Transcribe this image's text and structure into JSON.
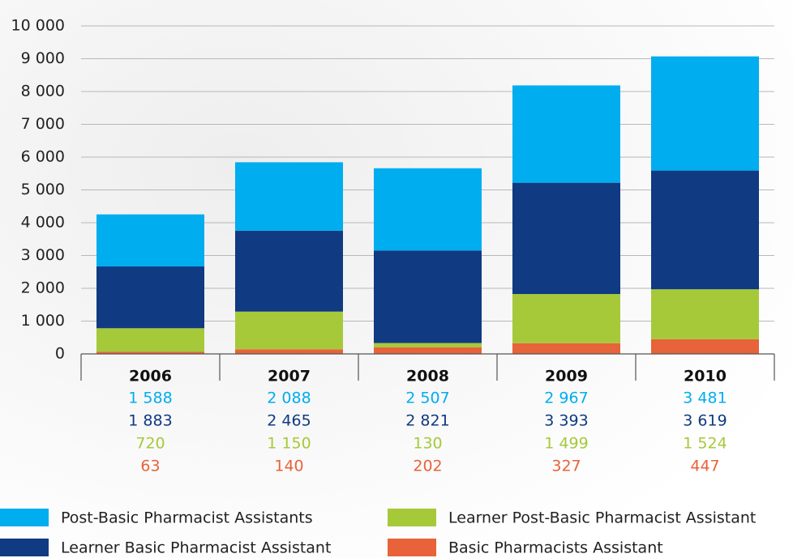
{
  "chart_data": {
    "type": "stacked-bar",
    "categories": [
      "2006",
      "2007",
      "2008",
      "2009",
      "2010"
    ],
    "series": [
      {
        "name": "Post-Basic Pharmacist Assistants",
        "color": "#00adef",
        "values": [
          1588,
          2088,
          2507,
          2967,
          3481
        ],
        "value_labels": [
          "1 588",
          "2 088",
          "2 507",
          "2 967",
          "3 481"
        ]
      },
      {
        "name": "Learner Basic Pharmacist Assistant",
        "color": "#103a82",
        "values": [
          1883,
          2465,
          2821,
          3393,
          3619
        ],
        "value_labels": [
          "1 883",
          "2 465",
          "2 821",
          "3 393",
          "3 619"
        ]
      },
      {
        "name": "Learner Post-Basic Pharmacist Assistant",
        "color": "#a6c93a",
        "values": [
          720,
          1150,
          130,
          1499,
          1524
        ],
        "value_labels": [
          "720",
          "1 150",
          "130",
          "1 499",
          "1 524"
        ]
      },
      {
        "name": "Basic Pharmacists Assistant",
        "color": "#e8623a",
        "values": [
          63,
          140,
          202,
          327,
          447
        ]
      }
    ],
    "ylim": [
      0,
      10000
    ],
    "yticks": [
      0,
      {
        "value": 1000,
        "label": "1 000"
      },
      {
        "value": 2000,
        "label": "2 000"
      },
      {
        "value": 3000,
        "label": "3 000"
      },
      {
        "value": 4000,
        "label": "4 000"
      },
      {
        "value": 5000,
        "label": "5 000"
      },
      {
        "value": 6000,
        "label": "6 000"
      },
      {
        "value": 7000,
        "label": "7 000"
      },
      {
        "value": 8000,
        "label": "8 000"
      },
      {
        "value": 9000,
        "label": "9 000"
      },
      {
        "value": 10000,
        "label": "10 000"
      }
    ],
    "grid": true
  }
}
